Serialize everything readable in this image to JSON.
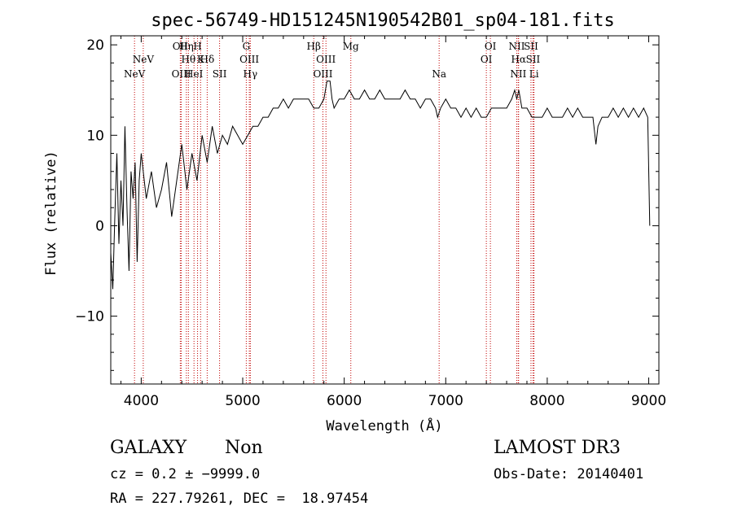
{
  "chart_data": {
    "type": "line",
    "title": "spec-56749-HD151245N190542B01_sp04-181.fits",
    "xlabel": "Wavelength (Å)",
    "ylabel": "Flux (relative)",
    "xlim": [
      3700,
      9100
    ],
    "ylim": [
      -17.5,
      21
    ],
    "x_ticks": [
      4000,
      5000,
      6000,
      7000,
      8000,
      9000
    ],
    "y_ticks": [
      -10,
      0,
      10,
      20
    ],
    "x_tick_labels": [
      "4000",
      "5000",
      "6000",
      "7000",
      "8000",
      "9000"
    ],
    "y_tick_labels": [
      "−10",
      "0",
      "10",
      "20"
    ],
    "series": [
      {
        "name": "flux",
        "x": [
          3700,
          3720,
          3740,
          3760,
          3780,
          3800,
          3820,
          3840,
          3860,
          3880,
          3900,
          3920,
          3940,
          3960,
          3980,
          4000,
          4050,
          4100,
          4150,
          4200,
          4250,
          4300,
          4350,
          4400,
          4450,
          4500,
          4550,
          4600,
          4650,
          4700,
          4750,
          4800,
          4850,
          4900,
          4950,
          5000,
          5050,
          5100,
          5150,
          5200,
          5250,
          5300,
          5350,
          5400,
          5450,
          5500,
          5550,
          5600,
          5650,
          5700,
          5750,
          5800,
          5830,
          5860,
          5880,
          5900,
          5950,
          6000,
          6050,
          6100,
          6150,
          6200,
          6250,
          6300,
          6350,
          6400,
          6450,
          6500,
          6550,
          6600,
          6650,
          6700,
          6750,
          6800,
          6850,
          6900,
          6920,
          6950,
          7000,
          7050,
          7100,
          7150,
          7200,
          7250,
          7300,
          7350,
          7400,
          7450,
          7500,
          7550,
          7600,
          7650,
          7680,
          7700,
          7720,
          7750,
          7800,
          7850,
          7900,
          7950,
          8000,
          8050,
          8100,
          8150,
          8200,
          8250,
          8300,
          8350,
          8400,
          8450,
          8480,
          8500,
          8540,
          8600,
          8650,
          8700,
          8750,
          8800,
          8850,
          8900,
          8950,
          8990,
          9010
        ],
        "y": [
          -3,
          -7,
          1,
          8,
          -2,
          5,
          0,
          11,
          2,
          -5,
          6,
          3,
          7,
          -4,
          5,
          8,
          3,
          6,
          2,
          4,
          7,
          1,
          5,
          9,
          4,
          8,
          5,
          10,
          7,
          11,
          8,
          10,
          9,
          11,
          10,
          9,
          10,
          11,
          11,
          12,
          12,
          13,
          13,
          14,
          13,
          14,
          14,
          14,
          14,
          13,
          13,
          14,
          16,
          16,
          14,
          13,
          14,
          14,
          15,
          14,
          14,
          15,
          14,
          14,
          15,
          14,
          14,
          14,
          14,
          15,
          14,
          14,
          13,
          14,
          14,
          13,
          12,
          13,
          14,
          13,
          13,
          12,
          13,
          12,
          13,
          12,
          12,
          13,
          13,
          13,
          13,
          14,
          15,
          14,
          15,
          13,
          13,
          12,
          12,
          12,
          13,
          12,
          12,
          12,
          13,
          12,
          13,
          12,
          12,
          12,
          9,
          11,
          12,
          12,
          13,
          12,
          13,
          12,
          13,
          12,
          13,
          12,
          0
        ]
      }
    ],
    "emission_lines": [
      {
        "label": "NeV",
        "x": 3934,
        "row": 4
      },
      {
        "label": "NeV",
        "x": 4020,
        "row": 2
      },
      {
        "label": "OII",
        "x": 4385,
        "row": 1
      },
      {
        "label": "OIII",
        "x": 4395,
        "row": 4
      },
      {
        "label": "Hη",
        "x": 4445,
        "row": 1
      },
      {
        "label": "Hθ",
        "x": 4465,
        "row": 2
      },
      {
        "label": "HeI",
        "x": 4520,
        "row": 4
      },
      {
        "label": "H",
        "x": 4555,
        "row": 1
      },
      {
        "label": "K",
        "x": 4585,
        "row": 2
      },
      {
        "label": "Hδ",
        "x": 4650,
        "row": 2
      },
      {
        "label": "SII",
        "x": 4772,
        "row": 4
      },
      {
        "label": "G",
        "x": 5035,
        "row": 1
      },
      {
        "label": "OIII",
        "x": 5065,
        "row": 2
      },
      {
        "label": "Hγ",
        "x": 5075,
        "row": 4
      },
      {
        "label": "Hβ",
        "x": 5700,
        "row": 1
      },
      {
        "label": "OIII",
        "x": 5820,
        "row": 2
      },
      {
        "label": "OIII",
        "x": 5790,
        "row": 4
      },
      {
        "label": "Mg",
        "x": 6065,
        "row": 1
      },
      {
        "label": "Na",
        "x": 6935,
        "row": 4
      },
      {
        "label": "OI",
        "x": 7440,
        "row": 1
      },
      {
        "label": "OI",
        "x": 7400,
        "row": 3
      },
      {
        "label": "NII",
        "x": 7700,
        "row": 1
      },
      {
        "label": "Hα",
        "x": 7718,
        "row": 3
      },
      {
        "label": "NII",
        "x": 7715,
        "row": 4
      },
      {
        "label": "SII",
        "x": 7840,
        "row": 1
      },
      {
        "label": "SII",
        "x": 7860,
        "row": 3
      },
      {
        "label": "Li",
        "x": 7870,
        "row": 4
      }
    ]
  },
  "info": {
    "class_label": "GALAXY",
    "subclass_label": "Non",
    "survey_label": "LAMOST DR3",
    "cz_text": "cz = 0.2 ± −9999.0",
    "obs_date_text": "Obs-Date: 20140401",
    "coords_text": "RA = 227.79261, DEC =  18.97454"
  },
  "colors": {
    "spectrum": "#000000",
    "line_marker": "#c00000",
    "axis": "#000000"
  }
}
